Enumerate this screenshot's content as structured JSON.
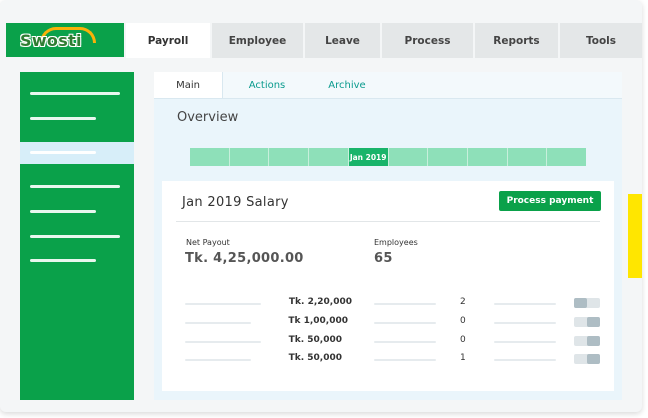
{
  "logo": {
    "text": "Swosti"
  },
  "nav": {
    "tabs": [
      {
        "label": "Payroll"
      },
      {
        "label": "Employee"
      },
      {
        "label": "Leave"
      },
      {
        "label": "Process"
      },
      {
        "label": "Reports"
      },
      {
        "label": "Tools"
      }
    ],
    "active": "Payroll"
  },
  "subtabs": [
    {
      "label": "Main"
    },
    {
      "label": "Actions"
    },
    {
      "label": "Archive"
    }
  ],
  "overview": {
    "title": "Overview"
  },
  "timeline": {
    "active_label": "Jan 2019"
  },
  "salary": {
    "title": "Jan 2019 Salary",
    "process_button": "Process payment",
    "net_payout_label": "Net Payout",
    "net_payout_value": "Tk. 4,25,000.00",
    "employees_label": "Employees",
    "employees_value": "65",
    "rows": [
      {
        "amount": "Tk. 2,20,000",
        "count": "2"
      },
      {
        "amount": "Tk 1,00,000",
        "count": "0"
      },
      {
        "amount": "Tk. 50,000",
        "count": "0"
      },
      {
        "amount": "Tk. 50,000",
        "count": "1"
      }
    ]
  },
  "colors": {
    "brand_green": "#0aa14a",
    "timeline_green": "#8ee0b9",
    "active_timeline": "#19b46a",
    "accent_yellow": "#ffe600",
    "teal_text": "#0a9b8e"
  }
}
